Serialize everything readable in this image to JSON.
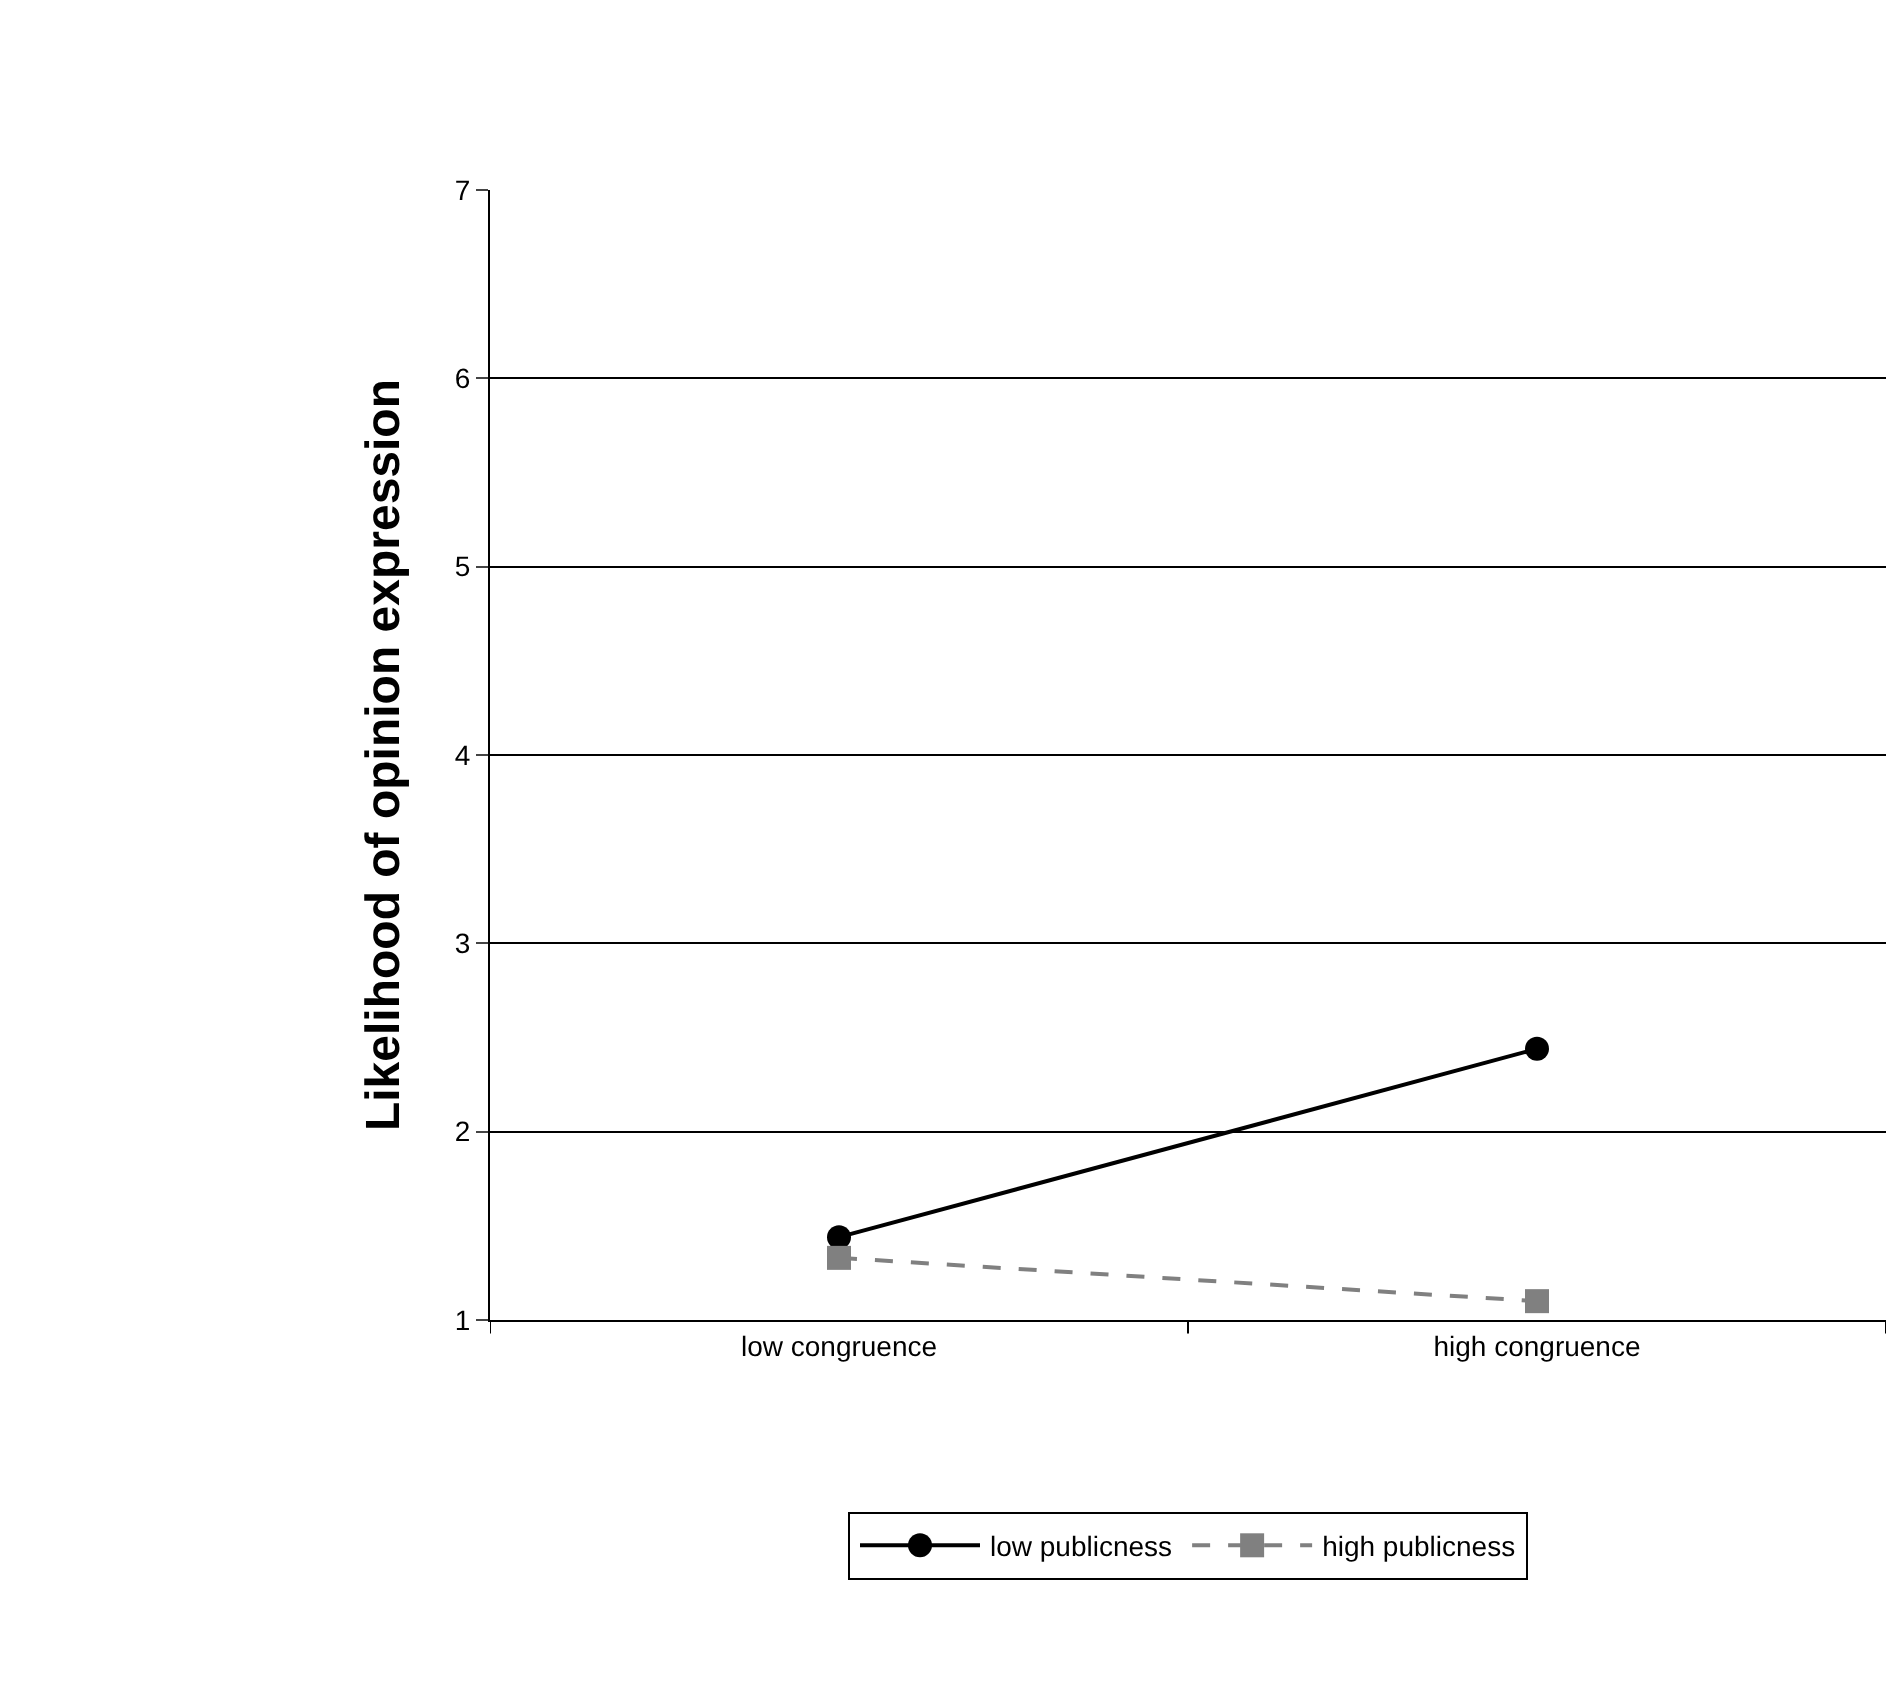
{
  "chart_data": {
    "type": "line",
    "ylabel": "Likelihood of opinion expression",
    "categories": [
      "low congruence",
      "high congruence"
    ],
    "series": [
      {
        "name": "low publicness",
        "color": "#000000",
        "values": [
          1.44,
          2.44
        ],
        "marker": "circle",
        "line_style": "solid"
      },
      {
        "name": "high publicness",
        "color": "#808080",
        "values": [
          1.33,
          1.1
        ],
        "marker": "square",
        "line_style": "dashed"
      }
    ],
    "ylim": [
      1,
      7
    ],
    "yticks": [
      1,
      2,
      3,
      4,
      5,
      6,
      7
    ],
    "grid": "y",
    "legend": "bottom"
  }
}
